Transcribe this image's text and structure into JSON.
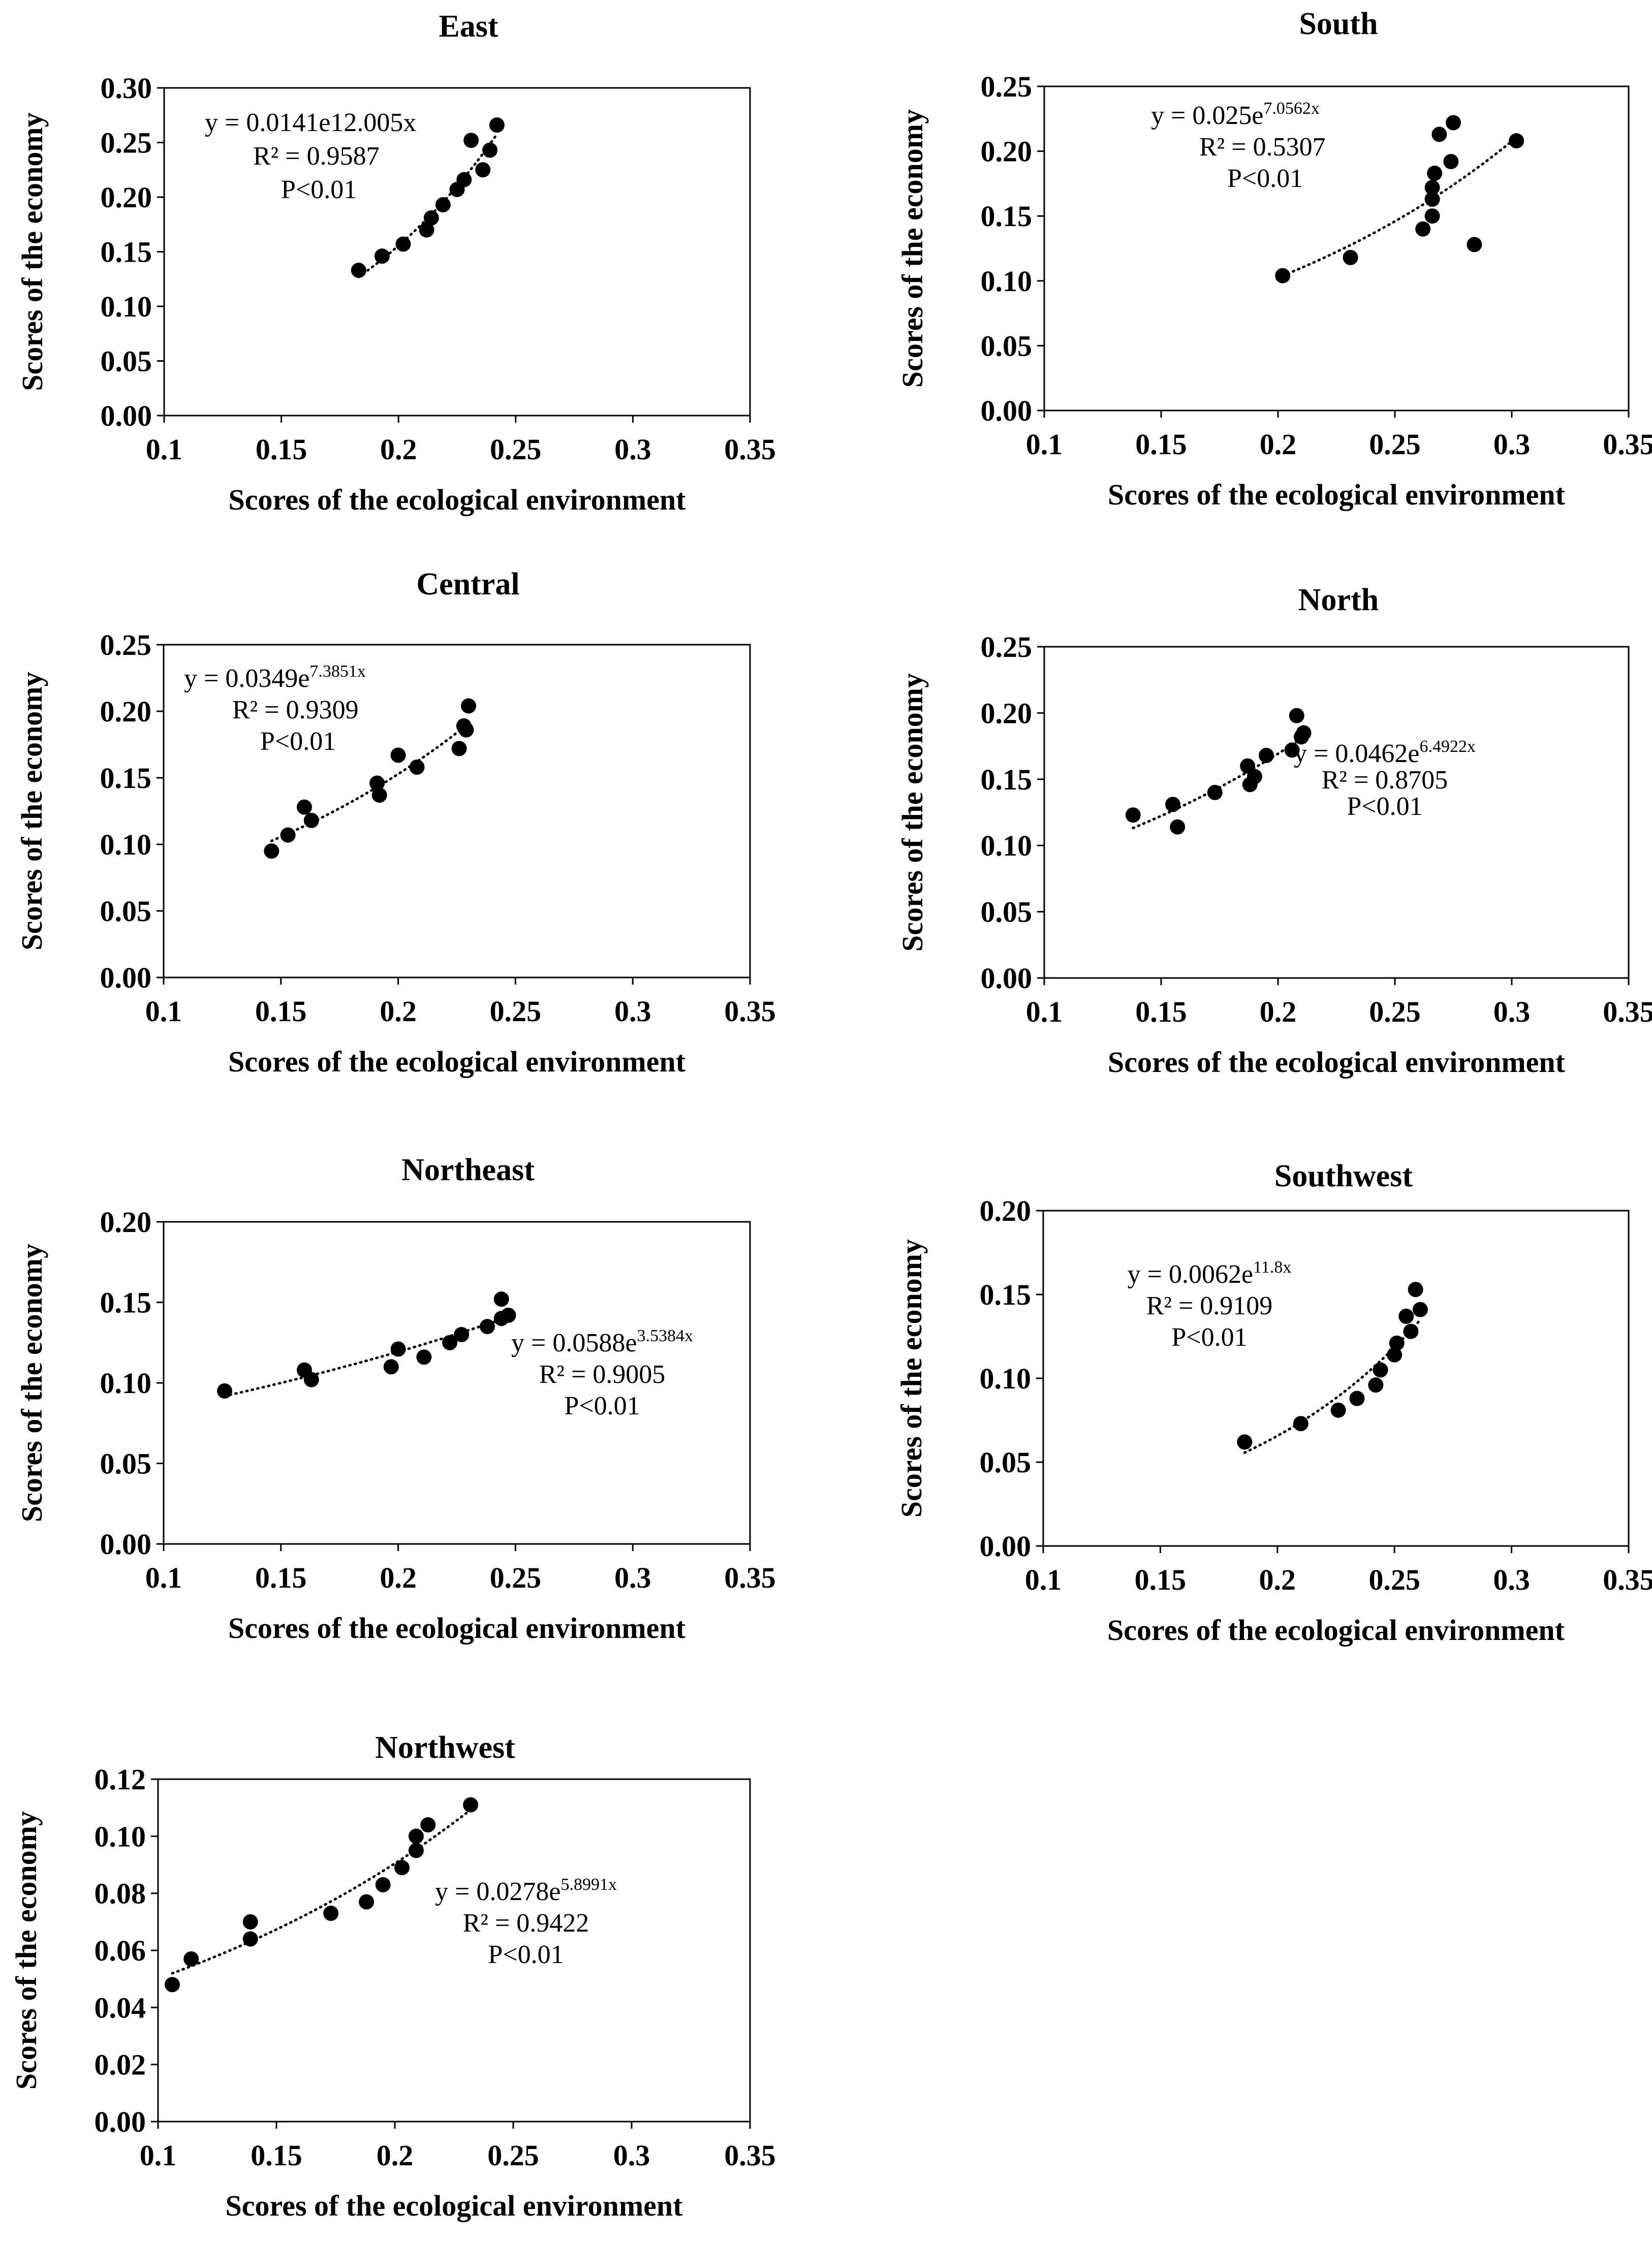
{
  "figure": {
    "colors": {
      "axis": "#000000",
      "point": "#000000",
      "trend": "#000000",
      "background": "#ffffff"
    }
  },
  "chart_data": [
    {
      "type": "scatter",
      "title": "East",
      "xlabel": "Scores of  the ecological environment",
      "ylabel": "Scores of the economy",
      "xlim": [
        0.1,
        0.35
      ],
      "ylim": [
        0,
        0.3
      ],
      "xticks": [
        "0.1",
        "0.15",
        "0.2",
        "0.25",
        "0.3",
        "0.35"
      ],
      "yticks": [
        "0.00",
        "0.05",
        "0.10",
        "0.15",
        "0.20",
        "0.25",
        "0.30"
      ],
      "points": [
        [
          0.183,
          0.133
        ],
        [
          0.193,
          0.146
        ],
        [
          0.202,
          0.157
        ],
        [
          0.212,
          0.17
        ],
        [
          0.214,
          0.181
        ],
        [
          0.219,
          0.193
        ],
        [
          0.225,
          0.207
        ],
        [
          0.228,
          0.216
        ],
        [
          0.231,
          0.252
        ],
        [
          0.236,
          0.225
        ],
        [
          0.239,
          0.243
        ],
        [
          0.242,
          0.266
        ]
      ],
      "trendline": {
        "type": "exponential",
        "a": 0.0141,
        "b": 12.005,
        "x_range": [
          0.183,
          0.242
        ]
      },
      "equation": "y = 0.0141e12.005x",
      "equation_superscript": "",
      "r2": "R² = 0.9587",
      "p": "P<0.01"
    },
    {
      "type": "scatter",
      "title": "South",
      "xlabel": "Scores of  the ecological environment",
      "ylabel": "Scores of the economy",
      "xlim": [
        0.1,
        0.35
      ],
      "ylim": [
        0,
        0.25
      ],
      "xticks": [
        "0.1",
        "0.15",
        "0.2",
        "0.25",
        "0.3",
        "0.35"
      ],
      "yticks": [
        "0.00",
        "0.05",
        "0.10",
        "0.15",
        "0.20",
        "0.25"
      ],
      "points": [
        [
          0.202,
          0.104
        ],
        [
          0.231,
          0.118
        ],
        [
          0.262,
          0.14
        ],
        [
          0.266,
          0.15
        ],
        [
          0.266,
          0.163
        ],
        [
          0.266,
          0.172
        ],
        [
          0.267,
          0.183
        ],
        [
          0.269,
          0.213
        ],
        [
          0.274,
          0.192
        ],
        [
          0.275,
          0.222
        ],
        [
          0.284,
          0.128
        ],
        [
          0.302,
          0.208
        ]
      ],
      "trendline": {
        "type": "exponential",
        "a": 0.025,
        "b": 7.0562,
        "x_range": [
          0.202,
          0.302
        ]
      },
      "equation": "y = 0.025e",
      "equation_superscript": "7.0562x",
      "r2": "R² = 0.5307",
      "p": "P<0.01"
    },
    {
      "type": "scatter",
      "title": "Central",
      "xlabel": "Scores of  the ecological environment",
      "ylabel": "Scores of the economy",
      "xlim": [
        0.1,
        0.35
      ],
      "ylim": [
        0,
        0.25
      ],
      "xticks": [
        "0.1",
        "0.15",
        "0.2",
        "0.25",
        "0.3",
        "0.35"
      ],
      "yticks": [
        "0.00",
        "0.05",
        "0.10",
        "0.15",
        "0.20",
        "0.25"
      ],
      "points": [
        [
          0.146,
          0.095
        ],
        [
          0.153,
          0.107
        ],
        [
          0.16,
          0.128
        ],
        [
          0.163,
          0.118
        ],
        [
          0.191,
          0.146
        ],
        [
          0.192,
          0.137
        ],
        [
          0.2,
          0.167
        ],
        [
          0.208,
          0.158
        ],
        [
          0.226,
          0.172
        ],
        [
          0.228,
          0.189
        ],
        [
          0.229,
          0.186
        ],
        [
          0.23,
          0.204
        ]
      ],
      "trendline": {
        "type": "exponential",
        "a": 0.0349,
        "b": 7.3851,
        "x_range": [
          0.146,
          0.23
        ]
      },
      "equation": "y = 0.0349e",
      "equation_superscript": "7.3851x",
      "r2": "R² = 0.9309",
      "p": "P<0.01"
    },
    {
      "type": "scatter",
      "title": "North",
      "xlabel": "Scores of  the ecological environment",
      "ylabel": "Scores of the economy",
      "xlim": [
        0.1,
        0.35
      ],
      "ylim": [
        0,
        0.25
      ],
      "xticks": [
        "0.1",
        "0.15",
        "0.2",
        "0.25",
        "0.3",
        "0.35"
      ],
      "yticks": [
        "0.00",
        "0.05",
        "0.10",
        "0.15",
        "0.20",
        "0.25"
      ],
      "points": [
        [
          0.138,
          0.123
        ],
        [
          0.155,
          0.131
        ],
        [
          0.157,
          0.114
        ],
        [
          0.173,
          0.14
        ],
        [
          0.187,
          0.16
        ],
        [
          0.188,
          0.146
        ],
        [
          0.19,
          0.152
        ],
        [
          0.195,
          0.168
        ],
        [
          0.206,
          0.172
        ],
        [
          0.208,
          0.198
        ],
        [
          0.21,
          0.182
        ],
        [
          0.211,
          0.185
        ]
      ],
      "trendline": {
        "type": "exponential",
        "a": 0.0462,
        "b": 6.4922,
        "x_range": [
          0.138,
          0.211
        ]
      },
      "equation": "y = 0.0462e",
      "equation_superscript": "6.4922x",
      "r2": "R² = 0.8705",
      "p": "P<0.01"
    },
    {
      "type": "scatter",
      "title": "Northeast",
      "xlabel": "Scores of  the ecological environment",
      "ylabel": "Scores of the economy",
      "xlim": [
        0.1,
        0.35
      ],
      "ylim": [
        0,
        0.2
      ],
      "xticks": [
        "0.1",
        "0.15",
        "0.2",
        "0.25",
        "0.3",
        "0.35"
      ],
      "yticks": [
        "0.00",
        "0.05",
        "0.10",
        "0.15",
        "0.20"
      ],
      "points": [
        [
          0.126,
          0.095
        ],
        [
          0.16,
          0.108
        ],
        [
          0.163,
          0.102
        ],
        [
          0.197,
          0.11
        ],
        [
          0.2,
          0.121
        ],
        [
          0.211,
          0.116
        ],
        [
          0.222,
          0.125
        ],
        [
          0.227,
          0.13
        ],
        [
          0.238,
          0.135
        ],
        [
          0.244,
          0.152
        ],
        [
          0.244,
          0.14
        ],
        [
          0.247,
          0.142
        ]
      ],
      "trendline": {
        "type": "exponential",
        "a": 0.0588,
        "b": 3.5384,
        "x_range": [
          0.126,
          0.247
        ]
      },
      "equation": "y = 0.0588e",
      "equation_superscript": "3.5384x",
      "r2": "R² = 0.9005",
      "p": "P<0.01"
    },
    {
      "type": "scatter",
      "title": "Southwest",
      "xlabel": "Scores of  the ecological environment",
      "ylabel": "Scores of the economy",
      "xlim": [
        0.1,
        0.35
      ],
      "ylim": [
        0,
        0.2
      ],
      "xticks": [
        "0.1",
        "0.15",
        "0.2",
        "0.25",
        "0.3",
        "0.35"
      ],
      "yticks": [
        "0.00",
        "0.05",
        "0.10",
        "0.15",
        "0.20"
      ],
      "points": [
        [
          0.186,
          0.062
        ],
        [
          0.21,
          0.073
        ],
        [
          0.226,
          0.081
        ],
        [
          0.234,
          0.088
        ],
        [
          0.242,
          0.096
        ],
        [
          0.244,
          0.105
        ],
        [
          0.25,
          0.114
        ],
        [
          0.251,
          0.121
        ],
        [
          0.255,
          0.137
        ],
        [
          0.257,
          0.128
        ],
        [
          0.259,
          0.153
        ],
        [
          0.261,
          0.141
        ]
      ],
      "trendline": {
        "type": "exponential",
        "a": 0.0062,
        "b": 11.8,
        "x_range": [
          0.186,
          0.261
        ]
      },
      "equation": "y = 0.0062e",
      "equation_superscript": "11.8x",
      "r2": "R² = 0.9109",
      "p": "P<0.01"
    },
    {
      "type": "scatter",
      "title": "Northwest",
      "xlabel": "Scores of  the ecological environment",
      "ylabel": "Scores of the economy",
      "xlim": [
        0.1,
        0.35
      ],
      "ylim": [
        0,
        0.12
      ],
      "xticks": [
        "0.1",
        "0.15",
        "0.2",
        "0.25",
        "0.3",
        "0.35"
      ],
      "yticks": [
        "0.00",
        "0.02",
        "0.04",
        "0.06",
        "0.08",
        "0.10",
        "0.12"
      ],
      "points": [
        [
          0.106,
          0.048
        ],
        [
          0.114,
          0.057
        ],
        [
          0.139,
          0.064
        ],
        [
          0.139,
          0.07
        ],
        [
          0.173,
          0.073
        ],
        [
          0.188,
          0.077
        ],
        [
          0.195,
          0.083
        ],
        [
          0.203,
          0.089
        ],
        [
          0.209,
          0.095
        ],
        [
          0.209,
          0.1
        ],
        [
          0.214,
          0.104
        ],
        [
          0.232,
          0.111
        ]
      ],
      "trendline": {
        "type": "exponential",
        "a": 0.0278,
        "b": 5.8991,
        "x_range": [
          0.106,
          0.232
        ]
      },
      "equation": "y = 0.0278e",
      "equation_superscript": "5.8991x",
      "r2": "R² = 0.9422",
      "p": "P<0.01"
    }
  ]
}
